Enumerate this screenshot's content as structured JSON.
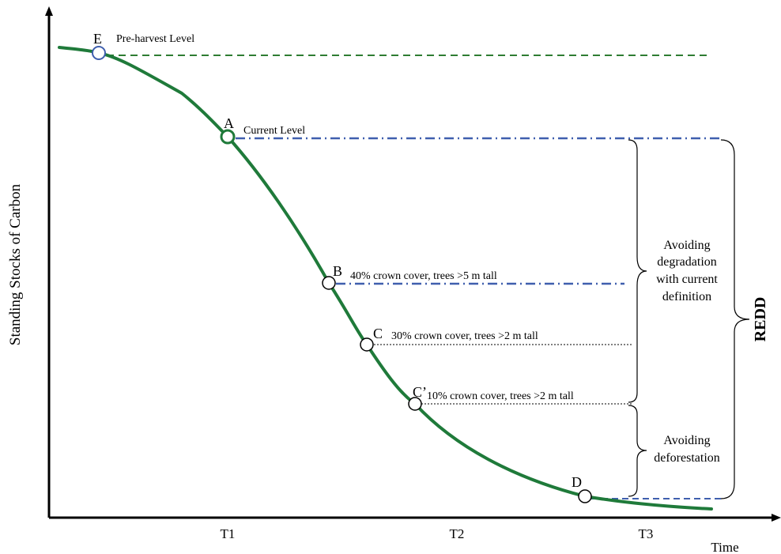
{
  "axes": {
    "y_label": "Standing Stocks of Carbon",
    "x_label": "Time",
    "ticks": [
      "T1",
      "T2",
      "T3"
    ]
  },
  "points": {
    "E": "E",
    "A": "A",
    "B": "B",
    "C": "C",
    "C2": "C’",
    "D": "D"
  },
  "levels": {
    "pre_harvest": "Pre-harvest Level",
    "current": "Current Level",
    "b": "40% crown cover, trees >5 m tall",
    "c": "30% crown cover, trees >2 m  tall",
    "c2": "10% crown cover, trees >2 m  tall"
  },
  "braces": {
    "degradation": [
      "Avoiding",
      "degradation",
      "with current",
      "definition"
    ],
    "deforestation": [
      "Avoiding",
      "deforestation"
    ],
    "redd": "REDD"
  },
  "colors": {
    "curve": "#1f7a3a",
    "pre_harvest_line": "#2e7d32",
    "current_line": "#3f5fae",
    "marker_e": "#3f5fae",
    "marker_a": "#1f7a3a"
  }
}
